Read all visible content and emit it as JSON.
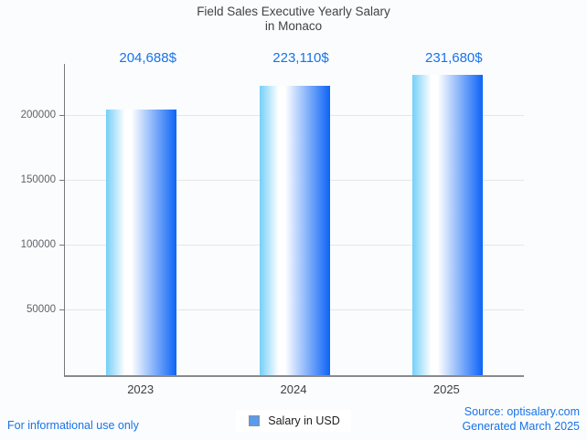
{
  "title": {
    "line1": "Field Sales Executive Yearly Salary",
    "line2": "in Monaco"
  },
  "legend": {
    "label": "Salary in USD"
  },
  "footer": {
    "disclaimer": "For informational use only",
    "source": "Source: optisalary.com",
    "generated": "Generated March 2025"
  },
  "colors": {
    "accent": "#1a73e8",
    "title_text": "#424242",
    "axis_line": "#787878",
    "grid": "#e6e6e6",
    "tick_label": "#5f6368",
    "bar_gradient_left": "#74cff8",
    "bar_gradient_mid": "#ffffff",
    "bar_gradient_right": "#0c64f6",
    "legend_square": "#5c9bea",
    "background": "#fafcfe"
  },
  "chart_data": {
    "type": "bar",
    "title": "Field Sales Executive Yearly Salary in Monaco",
    "categories": [
      "2023",
      "2024",
      "2025"
    ],
    "values": [
      204688,
      223110,
      231680
    ],
    "value_labels": [
      "204,688$",
      "223,110$",
      "231,680$"
    ],
    "series_name": "Salary in USD",
    "xlabel": "",
    "ylabel": "",
    "yticks": [
      50000,
      100000,
      150000,
      200000
    ],
    "ylim": [
      0,
      240000
    ],
    "grid": true,
    "legend_position": "bottom"
  }
}
